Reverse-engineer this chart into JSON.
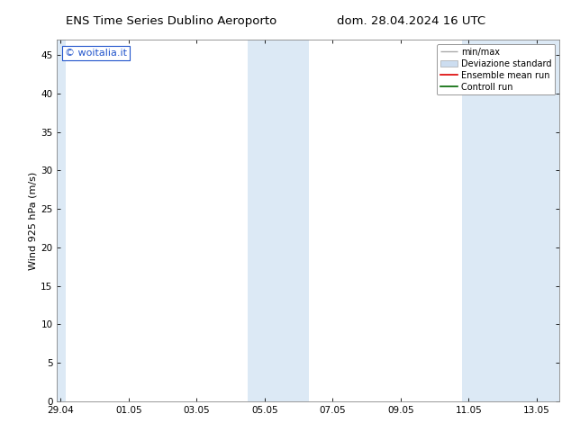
{
  "title_left": "ENS Time Series Dublino Aeroporto",
  "title_right": "dom. 28.04.2024 16 UTC",
  "ylabel": "Wind 925 hPa (m/s)",
  "watermark": "© woitalia.it",
  "xlim_start": 0,
  "xlim_end": 14.67,
  "ylim": [
    0,
    47
  ],
  "yticks": [
    0,
    5,
    10,
    15,
    20,
    25,
    30,
    35,
    40,
    45
  ],
  "xtick_labels": [
    "29.04",
    "01.05",
    "03.05",
    "05.05",
    "07.05",
    "09.05",
    "11.05",
    "13.05"
  ],
  "xtick_positions": [
    0,
    2,
    4,
    6,
    8,
    10,
    12,
    14
  ],
  "bg_color": "#ffffff",
  "plot_bg_color": "#ffffff",
  "band_color": "#dce9f5",
  "bands": [
    {
      "xstart": -0.1,
      "xend": 0.15
    },
    {
      "xstart": 5.5,
      "xend": 7.3
    },
    {
      "xstart": 11.8,
      "xend": 14.67
    }
  ],
  "legend_entries": [
    {
      "label": "min/max",
      "color": "#aaaaaa",
      "lw": 1.0,
      "type": "line_with_caps"
    },
    {
      "label": "Deviazione standard",
      "color": "#ccddf0",
      "lw": 8,
      "type": "band"
    },
    {
      "label": "Ensemble mean run",
      "color": "#dd0000",
      "lw": 1.2,
      "type": "line"
    },
    {
      "label": "Controll run",
      "color": "#006600",
      "lw": 1.2,
      "type": "line"
    }
  ],
  "font_size_title": 9.5,
  "font_size_axis": 8,
  "font_size_tick": 7.5,
  "font_size_legend": 7,
  "font_size_watermark": 8,
  "watermark_color": "#2255cc"
}
